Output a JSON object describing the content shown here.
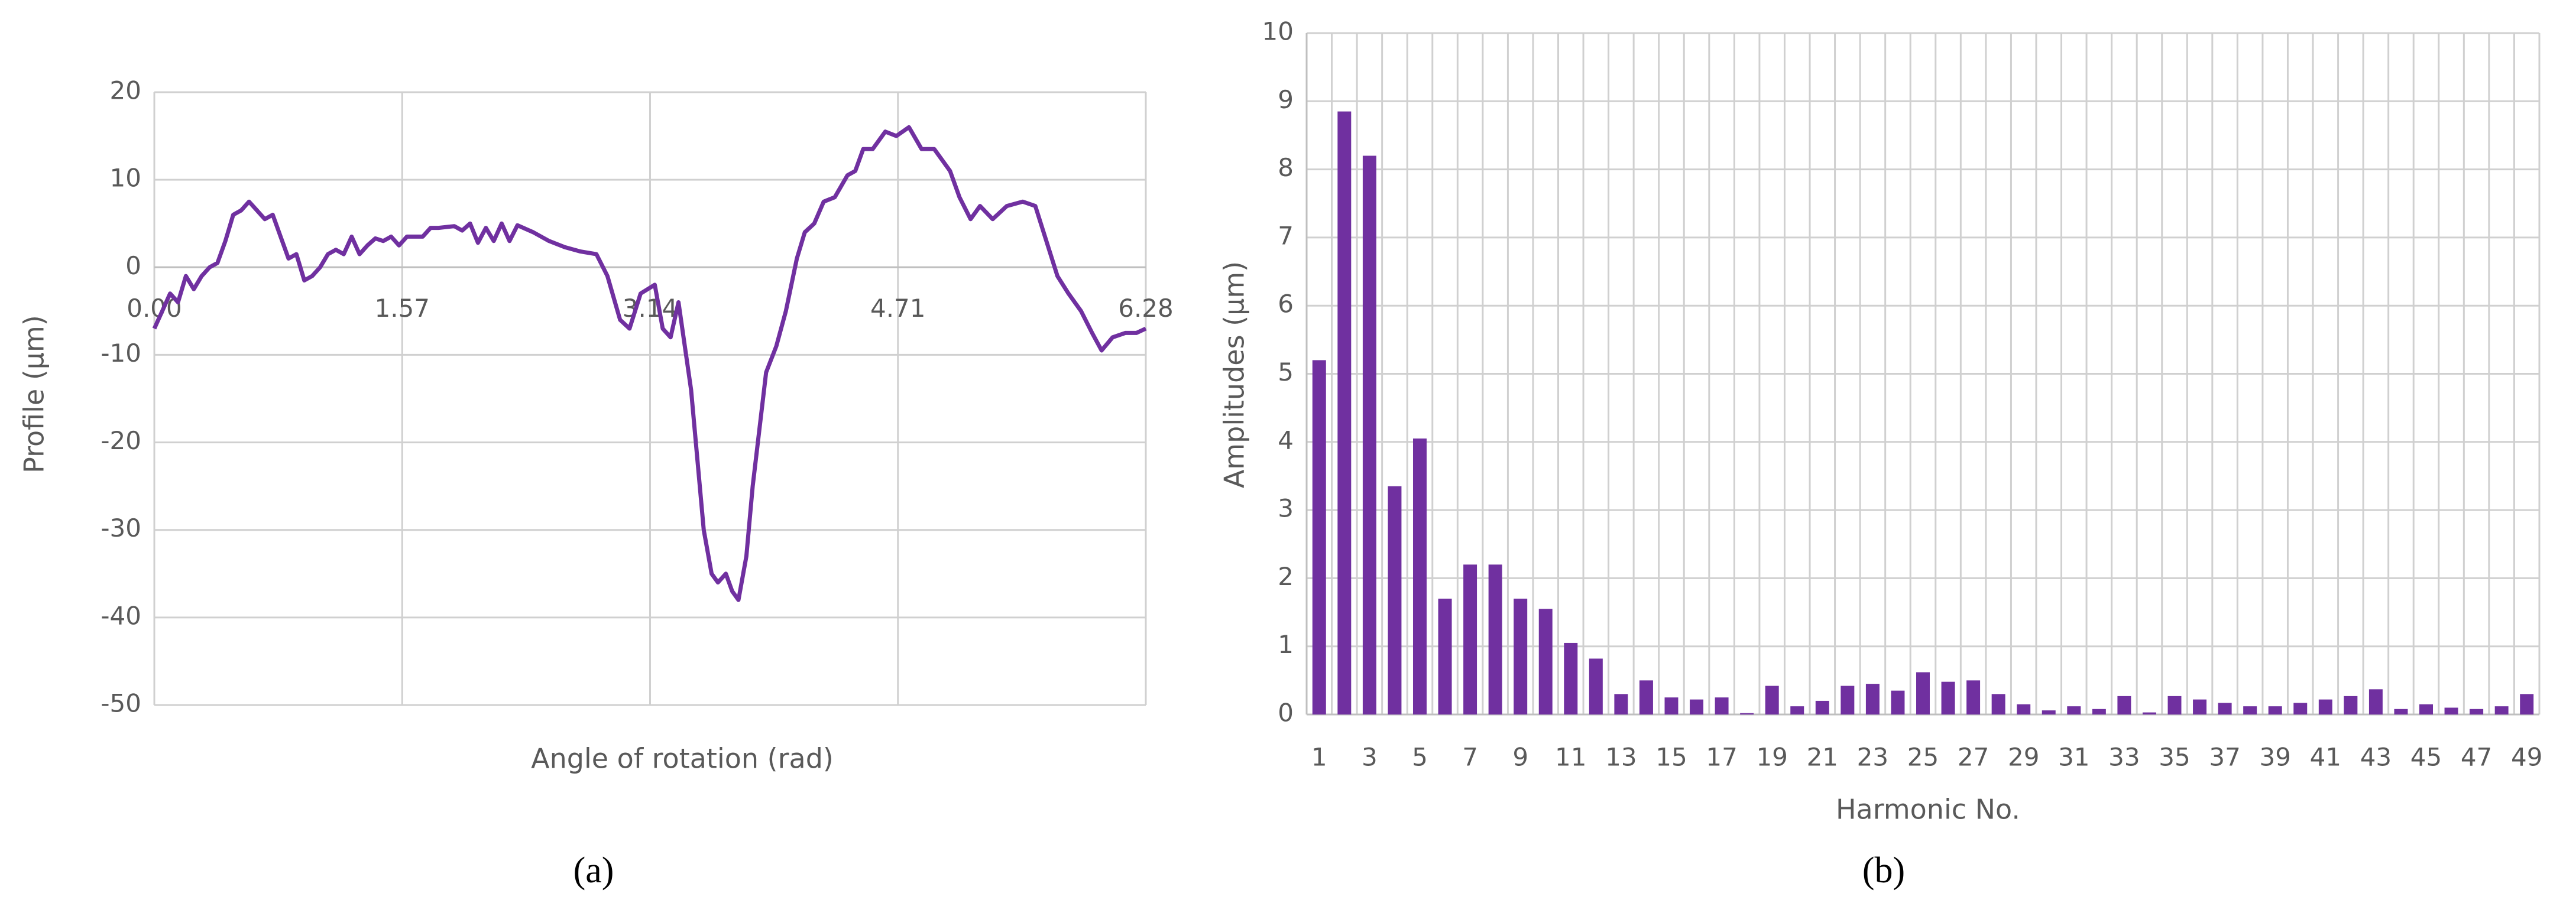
{
  "chart_data": [
    {
      "type": "line",
      "caption": "(a)",
      "x_label": "Angle of rotation (rad)",
      "y_label": "Profile (µm)",
      "color": "#7030a0",
      "grid": true,
      "xlim": [
        0,
        6.28
      ],
      "xticks": [
        {
          "value": 0,
          "label": "0.00"
        },
        1.57,
        3.14,
        4.71,
        6.28
      ],
      "ylim": [
        -50,
        20
      ],
      "yticks": [
        -50,
        -40,
        -30,
        -20,
        -10,
        0,
        10,
        20
      ],
      "x": [
        0,
        0.05,
        0.1,
        0.15,
        0.2,
        0.25,
        0.3,
        0.35,
        0.4,
        0.45,
        0.5,
        0.55,
        0.6,
        0.65,
        0.7,
        0.75,
        0.8,
        0.85,
        0.9,
        0.95,
        1.0,
        1.05,
        1.1,
        1.15,
        1.2,
        1.25,
        1.3,
        1.35,
        1.4,
        1.45,
        1.5,
        1.55,
        1.6,
        1.7,
        1.75,
        1.8,
        1.9,
        1.95,
        2.0,
        2.05,
        2.1,
        2.15,
        2.2,
        2.25,
        2.3,
        2.4,
        2.5,
        2.6,
        2.7,
        2.8,
        2.87,
        2.95,
        3.01,
        3.08,
        3.17,
        3.22,
        3.27,
        3.32,
        3.4,
        3.48,
        3.53,
        3.57,
        3.62,
        3.66,
        3.7,
        3.75,
        3.79,
        3.875,
        3.94,
        4.0,
        4.07,
        4.12,
        4.18,
        4.24,
        4.31,
        4.39,
        4.44,
        4.49,
        4.55,
        4.63,
        4.7,
        4.78,
        4.86,
        4.94,
        5.04,
        5.1,
        5.17,
        5.23,
        5.31,
        5.4,
        5.5,
        5.58,
        5.65,
        5.72,
        5.79,
        5.87,
        5.94,
        6.0,
        6.07,
        6.15,
        6.22,
        6.28
      ],
      "values": [
        -7,
        -5,
        -3,
        -4,
        -1,
        -2.5,
        -1,
        0,
        0.5,
        3,
        6,
        6.5,
        7.5,
        6.5,
        5.5,
        6,
        3.5,
        1,
        1.5,
        -1.5,
        -1,
        0,
        1.5,
        2,
        1.5,
        3.5,
        1.5,
        2.5,
        3.3,
        3,
        3.5,
        2.5,
        3.5,
        3.5,
        4.5,
        4.5,
        4.7,
        4.2,
        5,
        2.8,
        4.5,
        3,
        5,
        3,
        4.8,
        4,
        3,
        2.3,
        1.8,
        1.5,
        -1,
        -6,
        -7,
        -3,
        -2,
        -7,
        -8,
        -4,
        -14,
        -30,
        -35,
        -36,
        -35,
        -37,
        -38,
        -33,
        -25,
        -12,
        -9,
        -5,
        1,
        4,
        5,
        7.5,
        8,
        10.5,
        11,
        13.5,
        13.5,
        15.5,
        15,
        16,
        13.5,
        13.5,
        11,
        8,
        5.5,
        7,
        5.5,
        7,
        7.5,
        7,
        3,
        -1,
        -3,
        -5,
        -7.5,
        -9.5,
        -8,
        -7.5,
        -7.5,
        -7
      ]
    },
    {
      "type": "bar",
      "caption": "(b)",
      "x_label": "Harmonic No.",
      "y_label": "Amplitudes (µm)",
      "color": "#7030a0",
      "grid": true,
      "ylim": [
        0,
        10
      ],
      "yticks": [
        0,
        1,
        2,
        3,
        4,
        5,
        6,
        7,
        8,
        9,
        10
      ],
      "categories": [
        "1",
        null,
        "3",
        null,
        "5",
        null,
        "7",
        null,
        "9",
        null,
        "11",
        null,
        "13",
        null,
        "15",
        null,
        "17",
        null,
        "19",
        null,
        "21",
        null,
        "23",
        null,
        "25",
        null,
        "27",
        null,
        "29",
        null,
        "31",
        null,
        "33",
        null,
        "35",
        null,
        "37",
        null,
        "39",
        null,
        "41",
        null,
        "43",
        null,
        "45",
        null,
        "47",
        null,
        "49"
      ],
      "values": [
        5.2,
        8.85,
        8.2,
        3.35,
        4.05,
        1.7,
        2.2,
        2.2,
        1.7,
        1.55,
        1.05,
        0.82,
        0.3,
        0.5,
        0.25,
        0.22,
        0.25,
        0.02,
        0.42,
        0.12,
        0.2,
        0.42,
        0.45,
        0.35,
        0.62,
        0.48,
        0.5,
        0.3,
        0.15,
        0.06,
        0.12,
        0.08,
        0.27,
        0.03,
        0.27,
        0.22,
        0.17,
        0.12,
        0.12,
        0.17,
        0.22,
        0.27,
        0.37,
        0.08,
        0.15,
        0.1,
        0.08,
        0.12,
        0.3
      ]
    }
  ]
}
